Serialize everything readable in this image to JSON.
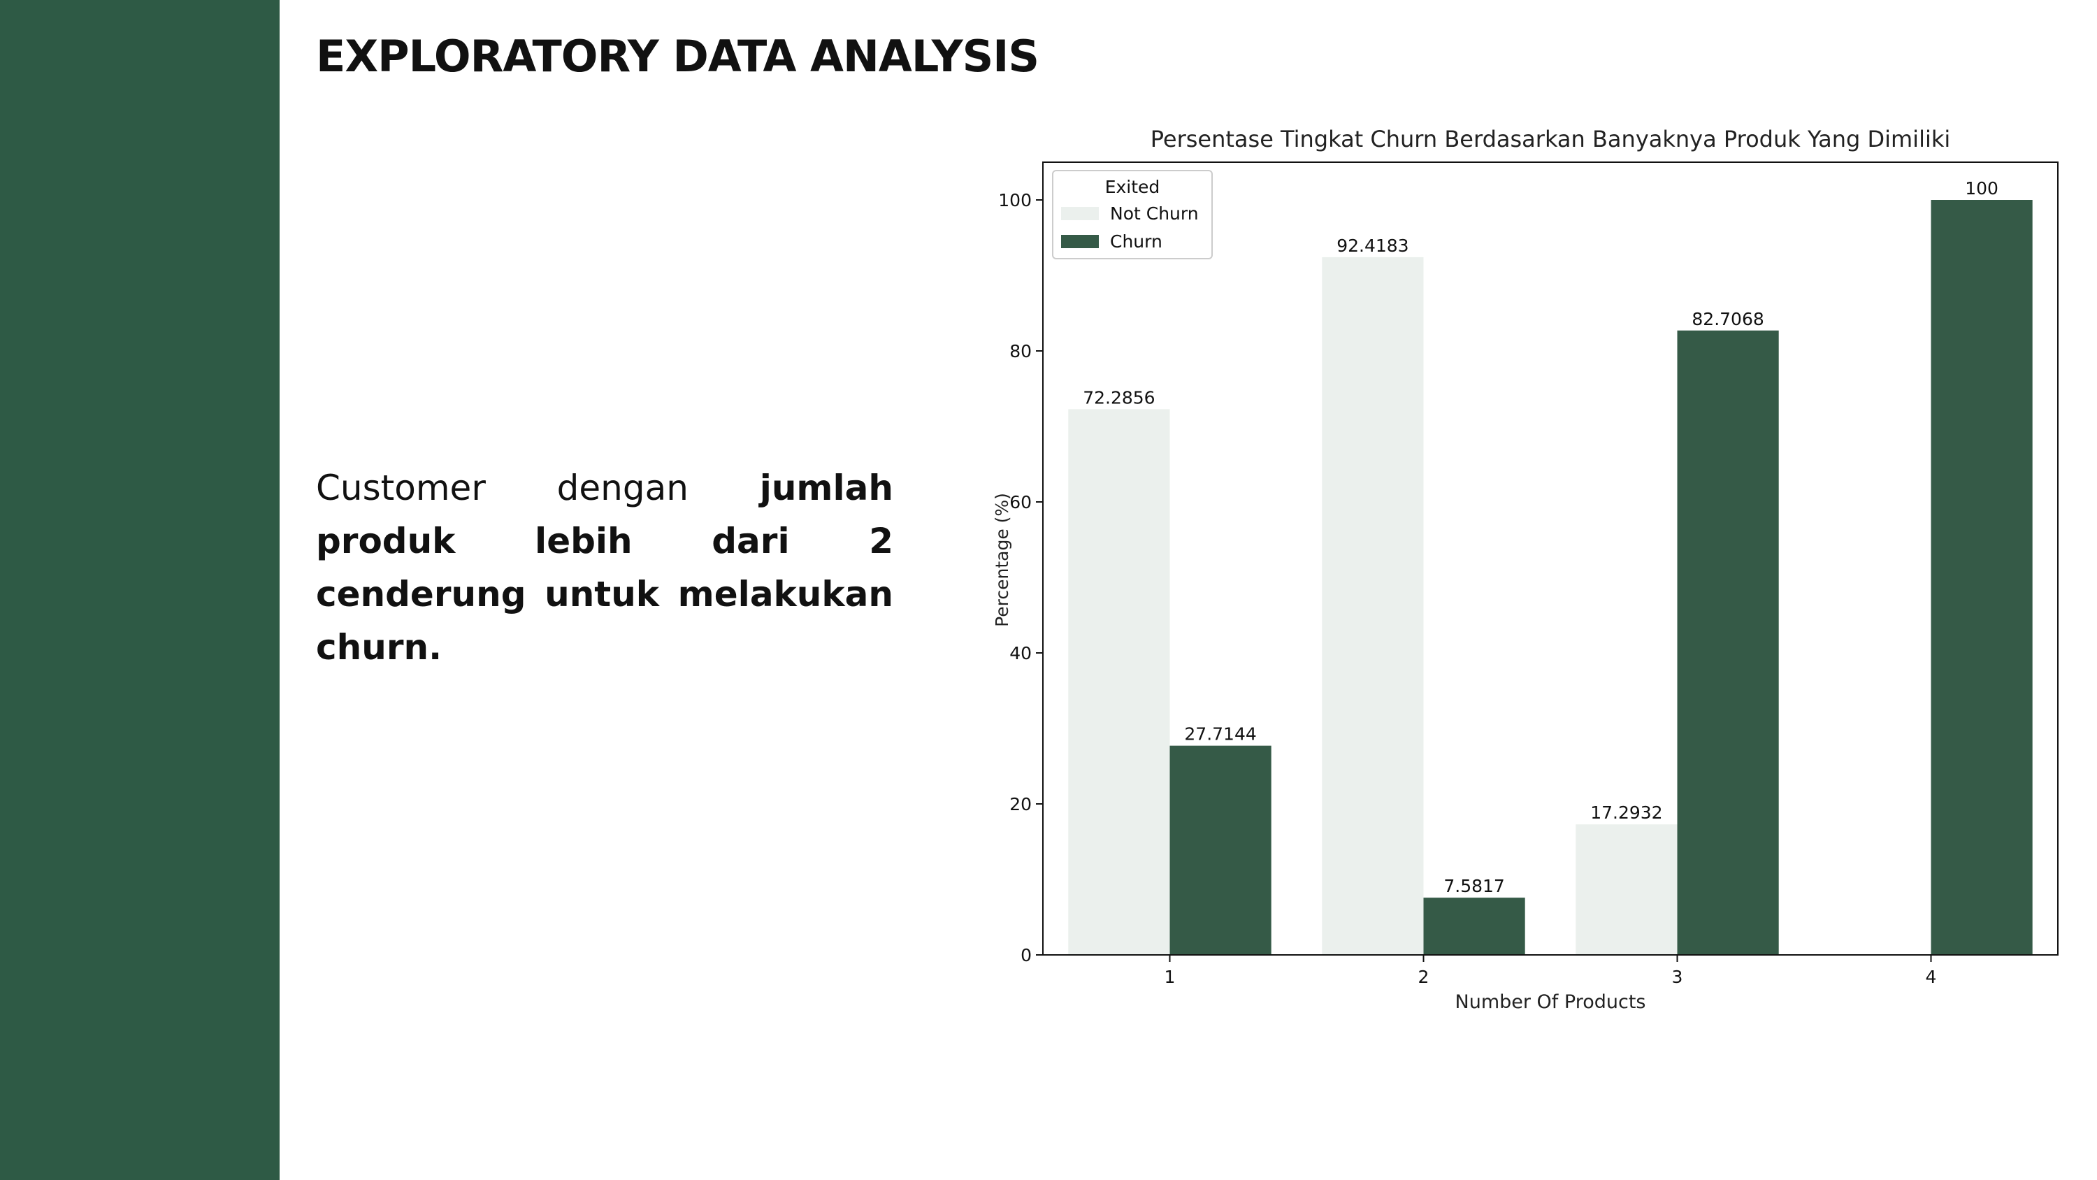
{
  "slide": {
    "title": "EXPLORATORY DATA ANALYSIS",
    "sidebar_color": "#2e5a45",
    "text_plain": "Customer dengan ",
    "text_bold": "jumlah produk lebih dari 2 cenderung untuk melakukan churn."
  },
  "chart_data": {
    "type": "bar",
    "title": "Persentase Tingkat Churn Berdasarkan Banyaknya Produk Yang Dimiliki",
    "xlabel": "Number Of Products",
    "ylabel": "Percentage (%)",
    "categories": [
      "1",
      "2",
      "3",
      "4"
    ],
    "ylim": [
      0,
      105
    ],
    "yticks": [
      0,
      20,
      40,
      60,
      80,
      100
    ],
    "legend": {
      "title": "Exited",
      "position": "top-left"
    },
    "series": [
      {
        "name": "Not Churn",
        "color": "#ebf0ed",
        "values": [
          72.2856,
          92.4183,
          17.2932,
          null
        ],
        "labels": [
          "72.2856",
          "92.4183",
          "17.2932",
          ""
        ]
      },
      {
        "name": "Churn",
        "color": "#355a47",
        "values": [
          27.7144,
          7.5817,
          82.7068,
          100
        ],
        "labels": [
          "27.7144",
          "7.5817",
          "82.7068",
          "100"
        ]
      }
    ]
  }
}
